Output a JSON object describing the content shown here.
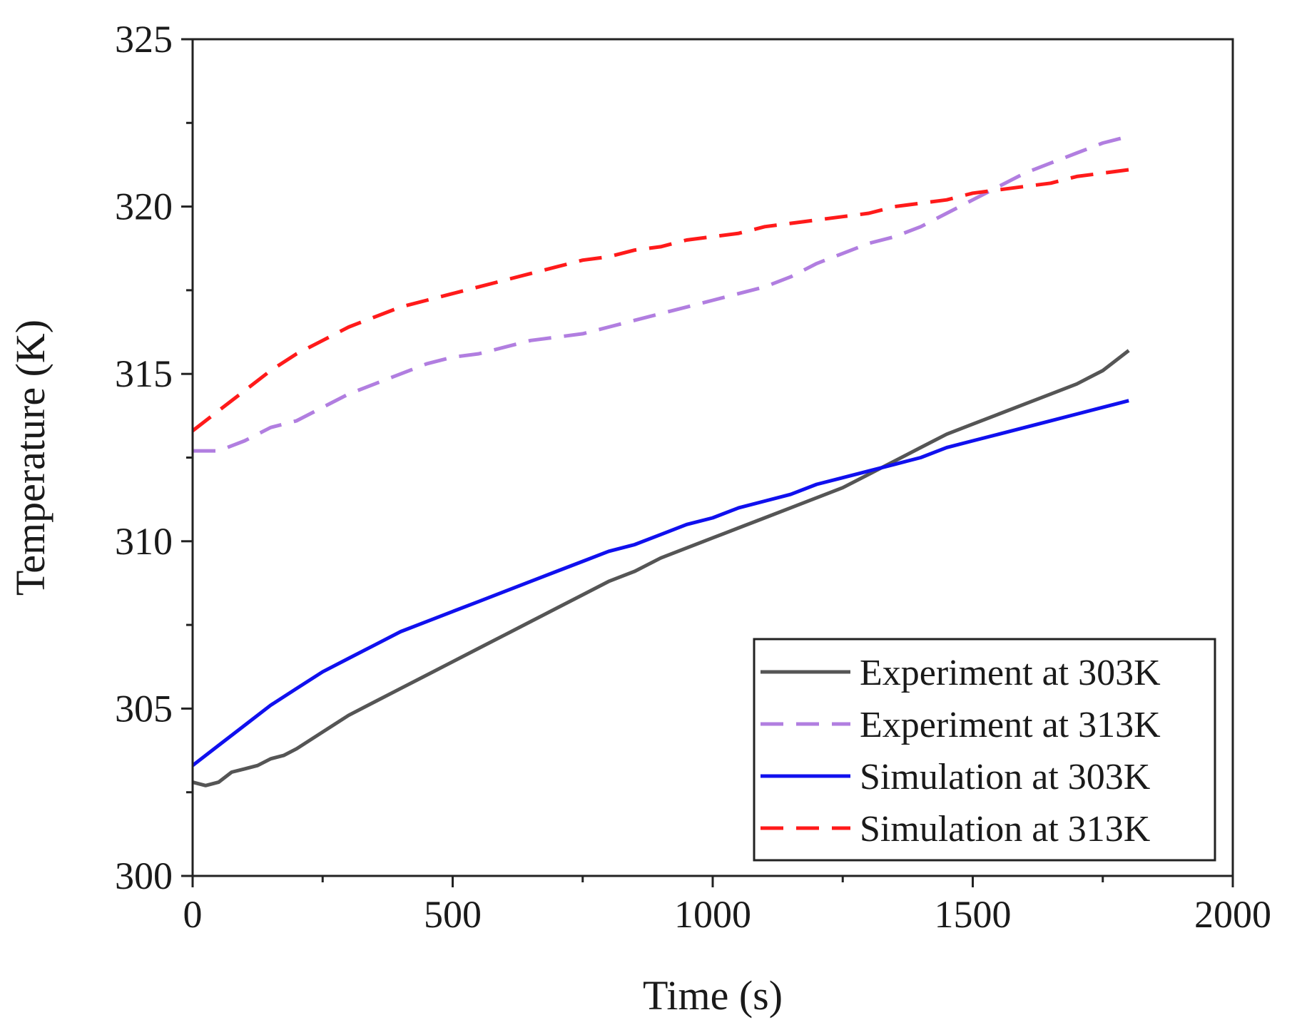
{
  "chart_data": {
    "type": "line",
    "title": "",
    "xlabel": "Time (s)",
    "ylabel": "Temperature (K)",
    "xlim": [
      0,
      2000
    ],
    "ylim": [
      300,
      325
    ],
    "xticks": [
      0,
      500,
      1000,
      1500,
      2000
    ],
    "xtick_labels": [
      "0",
      "500",
      "1000",
      "1500",
      "2000"
    ],
    "yticks": [
      300,
      305,
      310,
      315,
      320,
      325
    ],
    "ytick_labels": [
      "300",
      "305",
      "310",
      "315",
      "320",
      "325"
    ],
    "grid": false,
    "legend_position": "bottom-right",
    "series": [
      {
        "name": "Experiment at 303K",
        "color": "#555555",
        "style": "solid",
        "x": [
          0,
          25,
          50,
          75,
          100,
          125,
          150,
          175,
          200,
          250,
          300,
          350,
          400,
          450,
          500,
          550,
          600,
          650,
          700,
          750,
          800,
          850,
          900,
          950,
          1000,
          1050,
          1100,
          1150,
          1200,
          1250,
          1300,
          1350,
          1400,
          1450,
          1500,
          1550,
          1600,
          1650,
          1700,
          1750,
          1800
        ],
        "y": [
          302.8,
          302.7,
          302.8,
          303.1,
          303.2,
          303.3,
          303.5,
          303.6,
          303.8,
          304.3,
          304.8,
          305.2,
          305.6,
          306.0,
          306.4,
          306.8,
          307.2,
          307.6,
          308.0,
          308.4,
          308.8,
          309.1,
          309.5,
          309.8,
          310.1,
          310.4,
          310.7,
          311.0,
          311.3,
          311.6,
          312.0,
          312.4,
          312.8,
          313.2,
          313.5,
          313.8,
          314.1,
          314.4,
          314.7,
          315.1,
          315.7
        ]
      },
      {
        "name": "Experiment at 313K",
        "color": "#b17ee0",
        "style": "dashed",
        "x": [
          0,
          50,
          100,
          150,
          200,
          250,
          300,
          350,
          400,
          450,
          500,
          550,
          600,
          650,
          700,
          750,
          800,
          850,
          900,
          950,
          1000,
          1050,
          1100,
          1150,
          1200,
          1250,
          1300,
          1350,
          1400,
          1450,
          1500,
          1550,
          1600,
          1650,
          1700,
          1750,
          1800
        ],
        "y": [
          312.7,
          312.7,
          313.0,
          313.4,
          313.6,
          314.0,
          314.4,
          314.7,
          315.0,
          315.3,
          315.5,
          315.6,
          315.8,
          316.0,
          316.1,
          316.2,
          316.4,
          316.6,
          316.8,
          317.0,
          317.2,
          317.4,
          317.6,
          317.9,
          318.3,
          318.6,
          318.9,
          319.1,
          319.4,
          319.8,
          320.2,
          320.6,
          321.0,
          321.3,
          321.6,
          321.9,
          322.1
        ]
      },
      {
        "name": "Simulation at 303K",
        "color": "#1010ee",
        "style": "solid",
        "x": [
          0,
          50,
          100,
          150,
          200,
          250,
          300,
          350,
          400,
          450,
          500,
          550,
          600,
          650,
          700,
          750,
          800,
          850,
          900,
          950,
          1000,
          1050,
          1100,
          1150,
          1200,
          1250,
          1300,
          1350,
          1400,
          1450,
          1500,
          1550,
          1600,
          1650,
          1700,
          1750,
          1800
        ],
        "y": [
          303.3,
          303.9,
          304.5,
          305.1,
          305.6,
          306.1,
          306.5,
          306.9,
          307.3,
          307.6,
          307.9,
          308.2,
          308.5,
          308.8,
          309.1,
          309.4,
          309.7,
          309.9,
          310.2,
          310.5,
          310.7,
          311.0,
          311.2,
          311.4,
          311.7,
          311.9,
          312.1,
          312.3,
          312.5,
          312.8,
          313.0,
          313.2,
          313.4,
          313.6,
          313.8,
          314.0,
          314.2
        ]
      },
      {
        "name": "Simulation at 313K",
        "color": "#ff1a1a",
        "style": "dashed",
        "x": [
          0,
          50,
          100,
          150,
          200,
          250,
          300,
          350,
          400,
          450,
          500,
          550,
          600,
          650,
          700,
          750,
          800,
          850,
          900,
          950,
          1000,
          1050,
          1100,
          1150,
          1200,
          1250,
          1300,
          1350,
          1400,
          1450,
          1500,
          1550,
          1600,
          1650,
          1700,
          1750,
          1800
        ],
        "y": [
          313.3,
          313.9,
          314.5,
          315.1,
          315.6,
          316.0,
          316.4,
          316.7,
          317.0,
          317.2,
          317.4,
          317.6,
          317.8,
          318.0,
          318.2,
          318.4,
          318.5,
          318.7,
          318.8,
          319.0,
          319.1,
          319.2,
          319.4,
          319.5,
          319.6,
          319.7,
          319.8,
          320.0,
          320.1,
          320.2,
          320.4,
          320.5,
          320.6,
          320.7,
          320.9,
          321.0,
          321.1
        ]
      }
    ]
  }
}
